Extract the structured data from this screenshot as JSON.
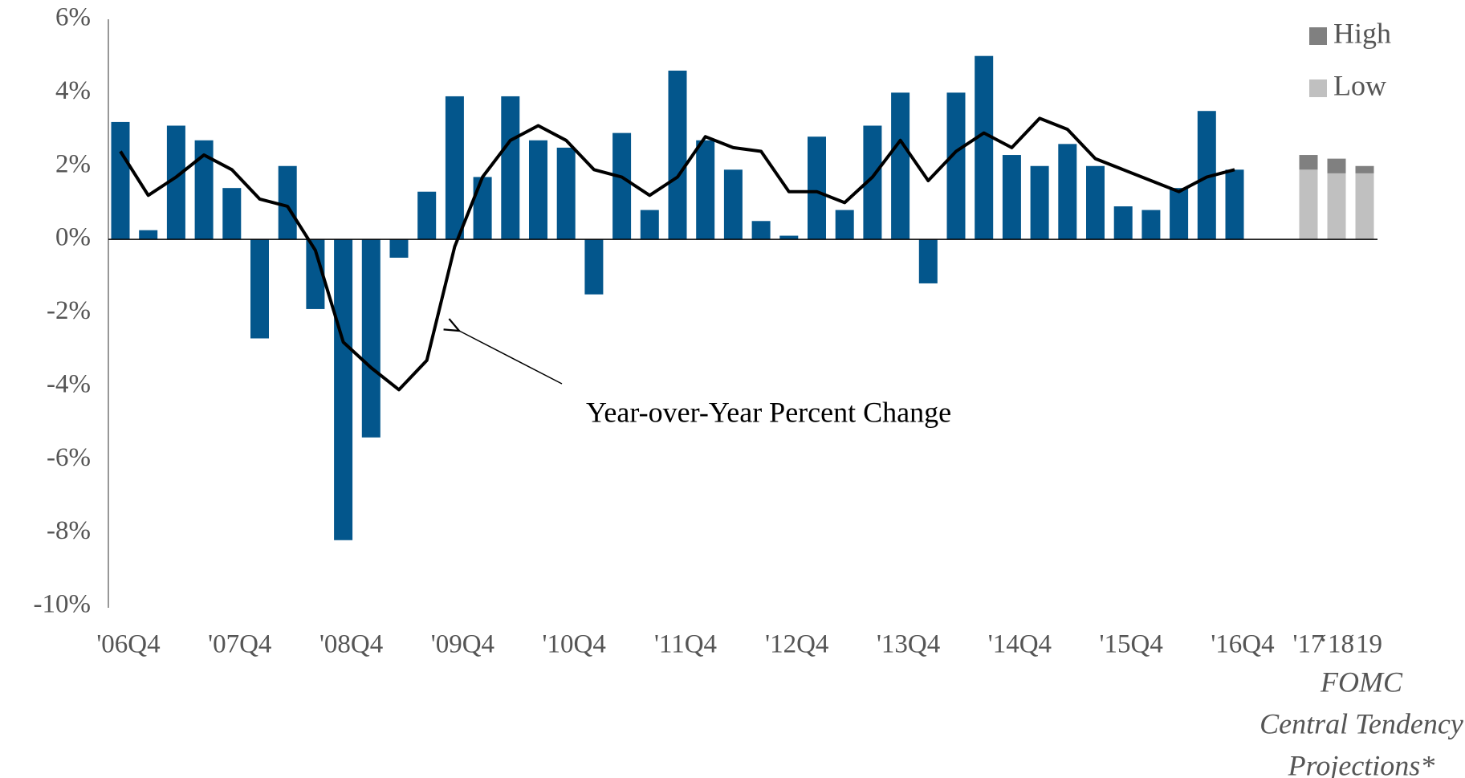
{
  "chart_data": {
    "type": "bar",
    "categories": [
      "'06Q4",
      null,
      null,
      null,
      "'07Q4",
      null,
      null,
      null,
      "'08Q4",
      null,
      null,
      null,
      "'09Q4",
      null,
      null,
      null,
      "'10Q4",
      null,
      null,
      null,
      "'11Q4",
      null,
      null,
      null,
      "'12Q4",
      null,
      null,
      null,
      "'13Q4",
      null,
      null,
      null,
      "'14Q4",
      null,
      null,
      null,
      "'15Q4",
      null,
      null,
      null,
      "'16Q4"
    ],
    "values": [
      3.2,
      0.25,
      3.1,
      2.7,
      1.4,
      -2.7,
      2.0,
      -1.9,
      -8.2,
      -5.4,
      -0.5,
      1.3,
      3.9,
      1.7,
      3.9,
      2.7,
      2.5,
      -1.5,
      2.9,
      0.8,
      4.6,
      2.7,
      1.9,
      0.5,
      0.1,
      2.8,
      0.8,
      3.1,
      4.0,
      -1.2,
      4.0,
      5.0,
      2.3,
      2.0,
      2.6,
      2.0,
      0.9,
      0.8,
      1.4,
      3.5,
      1.9
    ],
    "color": "#03568c",
    "line": {
      "color": "#000000",
      "values": [
        2.4,
        1.2,
        1.7,
        2.3,
        1.9,
        1.1,
        0.9,
        -0.3,
        -2.8,
        -3.5,
        -4.1,
        -3.3,
        -0.2,
        1.7,
        2.7,
        3.1,
        2.7,
        1.9,
        1.7,
        1.2,
        1.7,
        2.8,
        2.5,
        2.4,
        1.3,
        1.3,
        1.0,
        1.7,
        2.7,
        1.6,
        2.4,
        2.9,
        2.5,
        3.3,
        3.0,
        2.2,
        1.9,
        1.6,
        1.3,
        1.7,
        1.9
      ]
    },
    "projections": {
      "categories": [
        "'17",
        "‘18",
        "‘19"
      ],
      "series": [
        {
          "name": "Low",
          "color": "#c0c0c0",
          "values": [
            1.9,
            1.8,
            1.8
          ]
        },
        {
          "name": "High",
          "color": "#808080",
          "values": [
            0.4,
            0.4,
            0.2
          ]
        }
      ],
      "caption": [
        "FOMC",
        "Central Tendency",
        "Projections*"
      ]
    },
    "annotation": "Year-over-Year Percent Change",
    "ylim": [
      -10,
      6
    ],
    "yticks": [
      {
        "value": -10,
        "label": "-10%"
      },
      {
        "value": -8,
        "label": "-8%"
      },
      {
        "value": -6,
        "label": "-6%"
      },
      {
        "value": -4,
        "label": "-4%"
      },
      {
        "value": -2,
        "label": "-2%"
      },
      {
        "value": 0,
        "label": "0%"
      },
      {
        "value": 2,
        "label": "2%"
      },
      {
        "value": 4,
        "label": "4%"
      },
      {
        "value": 6,
        "label": "6%"
      }
    ],
    "grid": false
  }
}
